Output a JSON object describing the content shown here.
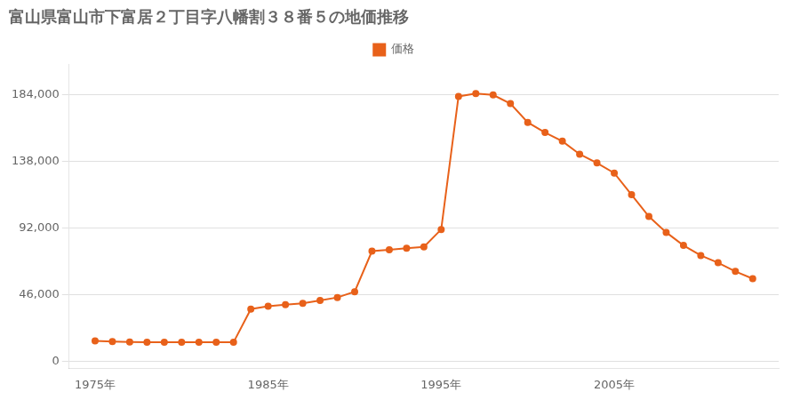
{
  "chart_data": {
    "type": "line",
    "title": "富山県富山市下富居２丁目字八幡割３８番５の地価推移",
    "x": [
      1975,
      1976,
      1977,
      1978,
      1979,
      1980,
      1981,
      1982,
      1983,
      1984,
      1985,
      1986,
      1987,
      1988,
      1989,
      1990,
      1991,
      1992,
      1993,
      1994,
      1995,
      1996,
      1997,
      1998,
      1999,
      2000,
      2001,
      2002,
      2003,
      2004,
      2005,
      2006,
      2007,
      2008,
      2009,
      2010,
      2011,
      2012,
      2013
    ],
    "series": [
      {
        "name": "価格",
        "color": "#E8611A",
        "marker": "circle",
        "values": [
          14000,
          13500,
          13200,
          13000,
          13000,
          13000,
          13000,
          13000,
          13000,
          36000,
          38000,
          39000,
          40000,
          42000,
          44000,
          48000,
          76000,
          77000,
          78000,
          79000,
          91000,
          183000,
          185000,
          184000,
          178000,
          165000,
          158000,
          152000,
          143000,
          137000,
          130000,
          115000,
          100000,
          89000,
          80000,
          73000,
          68000,
          62000,
          57000
        ]
      }
    ],
    "xlim": [
      1973.5,
      2014.5
    ],
    "xticks": [
      {
        "value": 1975,
        "label": "1975年"
      },
      {
        "value": 1985,
        "label": "1985年"
      },
      {
        "value": 1995,
        "label": "1995年"
      },
      {
        "value": 2005,
        "label": "2005年"
      }
    ],
    "ylim": [
      -5000,
      205000
    ],
    "yticks": [
      0,
      {
        "value": 46000,
        "label": "46,000"
      },
      {
        "value": 92000,
        "label": "92,000"
      },
      {
        "value": 138000,
        "label": "138,000"
      },
      {
        "value": 184000,
        "label": "184,000"
      }
    ],
    "grid": "y",
    "legend": "top"
  }
}
